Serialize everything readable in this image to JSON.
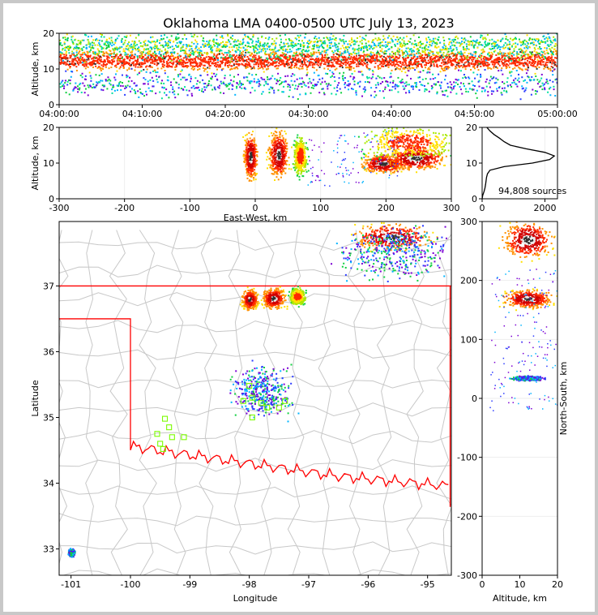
{
  "chart_data": [
    {
      "type": "heatmap",
      "id": "time-altitude",
      "title": "Oklahoma LMA 0400-0500 UTC July 13, 2023",
      "xlabel": "",
      "ylabel": "Altitude, km",
      "x_ticks": [
        "04:00:00",
        "04:10:00",
        "04:20:00",
        "04:30:00",
        "04:40:00",
        "04:50:00",
        "05:00:00"
      ],
      "xlim_minutes": [
        0,
        60
      ],
      "y_ticks": [
        0,
        10,
        20
      ],
      "ylim": [
        0,
        20
      ],
      "density_bands": [
        {
          "alt_km": 12.5,
          "spread_km": 2.2,
          "level": "high"
        },
        {
          "alt_km": 16.5,
          "spread_km": 3.0,
          "level": "medium"
        },
        {
          "alt_km": 6.0,
          "spread_km": 3.0,
          "level": "low"
        }
      ]
    },
    {
      "type": "heatmap",
      "id": "east-west-altitude",
      "xlabel": "East-West, km",
      "ylabel": "Altitude, km",
      "x_ticks": [
        -300,
        -200,
        -100,
        0,
        100,
        200,
        300
      ],
      "xlim": [
        -300,
        300
      ],
      "y_ticks": [
        0,
        10,
        20
      ],
      "ylim": [
        0,
        20
      ],
      "clusters": [
        {
          "x_km": -8,
          "alt_km": 12,
          "sx_km": 8,
          "sy_km": 5,
          "level": "high"
        },
        {
          "x_km": 35,
          "alt_km": 12.5,
          "sx_km": 12,
          "sy_km": 5,
          "level": "high"
        },
        {
          "x_km": 68,
          "alt_km": 12,
          "sx_km": 8,
          "sy_km": 4,
          "level": "medium"
        },
        {
          "x_km": 195,
          "alt_km": 10,
          "sx_km": 25,
          "sy_km": 2,
          "level": "high"
        },
        {
          "x_km": 245,
          "alt_km": 11.5,
          "sx_km": 35,
          "sy_km": 2.5,
          "level": "high"
        },
        {
          "x_km": 235,
          "alt_km": 16,
          "sx_km": 55,
          "sy_km": 3.5,
          "level": "medium"
        }
      ]
    },
    {
      "type": "line",
      "id": "altitude-histogram",
      "x_ticks": [
        0,
        2000
      ],
      "xlim": [
        0,
        2400
      ],
      "y_ticks": [
        0,
        10,
        20
      ],
      "ylim": [
        0,
        20
      ],
      "annotation": "94,808 sources",
      "counts_by_altitude": [
        {
          "alt_km": 0,
          "count": 0
        },
        {
          "alt_km": 1,
          "count": 20
        },
        {
          "alt_km": 2,
          "count": 60
        },
        {
          "alt_km": 3,
          "count": 90
        },
        {
          "alt_km": 4,
          "count": 110
        },
        {
          "alt_km": 5,
          "count": 125
        },
        {
          "alt_km": 6,
          "count": 140
        },
        {
          "alt_km": 7,
          "count": 170
        },
        {
          "alt_km": 8,
          "count": 250
        },
        {
          "alt_km": 9,
          "count": 700
        },
        {
          "alt_km": 10,
          "count": 1600
        },
        {
          "alt_km": 11,
          "count": 2150
        },
        {
          "alt_km": 12,
          "count": 2300
        },
        {
          "alt_km": 13,
          "count": 2000
        },
        {
          "alt_km": 14,
          "count": 1400
        },
        {
          "alt_km": 15,
          "count": 900
        },
        {
          "alt_km": 16,
          "count": 700
        },
        {
          "alt_km": 17,
          "count": 550
        },
        {
          "alt_km": 18,
          "count": 380
        },
        {
          "alt_km": 19,
          "count": 250
        },
        {
          "alt_km": 20,
          "count": 150
        }
      ]
    },
    {
      "type": "heatmap",
      "id": "plan-view",
      "xlabel": "Longitude",
      "ylabel": "Latitude",
      "x_ticks": [
        -101,
        -100,
        -99,
        -98,
        -97,
        -96,
        -95
      ],
      "xlim": [
        -101.2,
        -94.6
      ],
      "y_ticks": [
        33,
        34,
        35,
        36,
        37
      ],
      "ylim": [
        32.6,
        37.98
      ],
      "source_clusters": [
        {
          "lon": -98.0,
          "lat": 36.8,
          "slon": 0.1,
          "slat": 0.12,
          "level": "high"
        },
        {
          "lon": -97.6,
          "lat": 36.82,
          "slon": 0.15,
          "slat": 0.12,
          "level": "high"
        },
        {
          "lon": -97.2,
          "lat": 36.85,
          "slon": 0.1,
          "slat": 0.1,
          "level": "medium"
        },
        {
          "lon": -95.6,
          "lat": 37.75,
          "slon": 0.5,
          "slat": 0.15,
          "level": "high"
        },
        {
          "lon": -95.5,
          "lat": 37.5,
          "slon": 0.8,
          "slat": 0.3,
          "level": "low"
        },
        {
          "lon": -97.8,
          "lat": 35.4,
          "slon": 0.4,
          "slat": 0.3,
          "level": "low"
        },
        {
          "lon": -101.0,
          "lat": 32.95,
          "slon": 0.04,
          "slat": 0.04,
          "level": "low"
        }
      ],
      "stations": [
        [
          -99.42,
          34.98
        ],
        [
          -99.35,
          34.85
        ],
        [
          -99.55,
          34.75
        ],
        [
          -99.3,
          34.7
        ],
        [
          -99.5,
          34.6
        ],
        [
          -99.45,
          34.52
        ],
        [
          -99.1,
          34.7
        ],
        [
          -98.0,
          35.48
        ],
        [
          -98.1,
          35.25
        ],
        [
          -97.95,
          35.3
        ],
        [
          -97.8,
          35.22
        ],
        [
          -97.7,
          35.15
        ],
        [
          -97.5,
          35.15
        ],
        [
          -97.4,
          35.25
        ],
        [
          -97.95,
          35.0
        ]
      ],
      "state_border_color": "#ff0000",
      "county_line_color": "#c8c8c8",
      "station_color": "#7cfc00"
    },
    {
      "type": "heatmap",
      "id": "altitude-north-south",
      "xlabel": "Altitude, km",
      "ylabel": "North-South, km",
      "x_ticks": [
        0,
        10,
        20
      ],
      "xlim": [
        0,
        20
      ],
      "y_ticks": [
        -300,
        -200,
        -100,
        0,
        100,
        200,
        300
      ],
      "ylim": [
        -300,
        300
      ],
      "clusters": [
        {
          "alt_km": 12,
          "y_km": 170,
          "sx_km": 5,
          "sy_km": 12,
          "level": "high"
        },
        {
          "alt_km": 12,
          "y_km": 270,
          "sx_km": 5,
          "sy_km": 25,
          "level": "high"
        },
        {
          "alt_km": 12,
          "y_km": 35,
          "sx_km": 3,
          "sy_km": 3,
          "level": "low"
        }
      ]
    }
  ]
}
